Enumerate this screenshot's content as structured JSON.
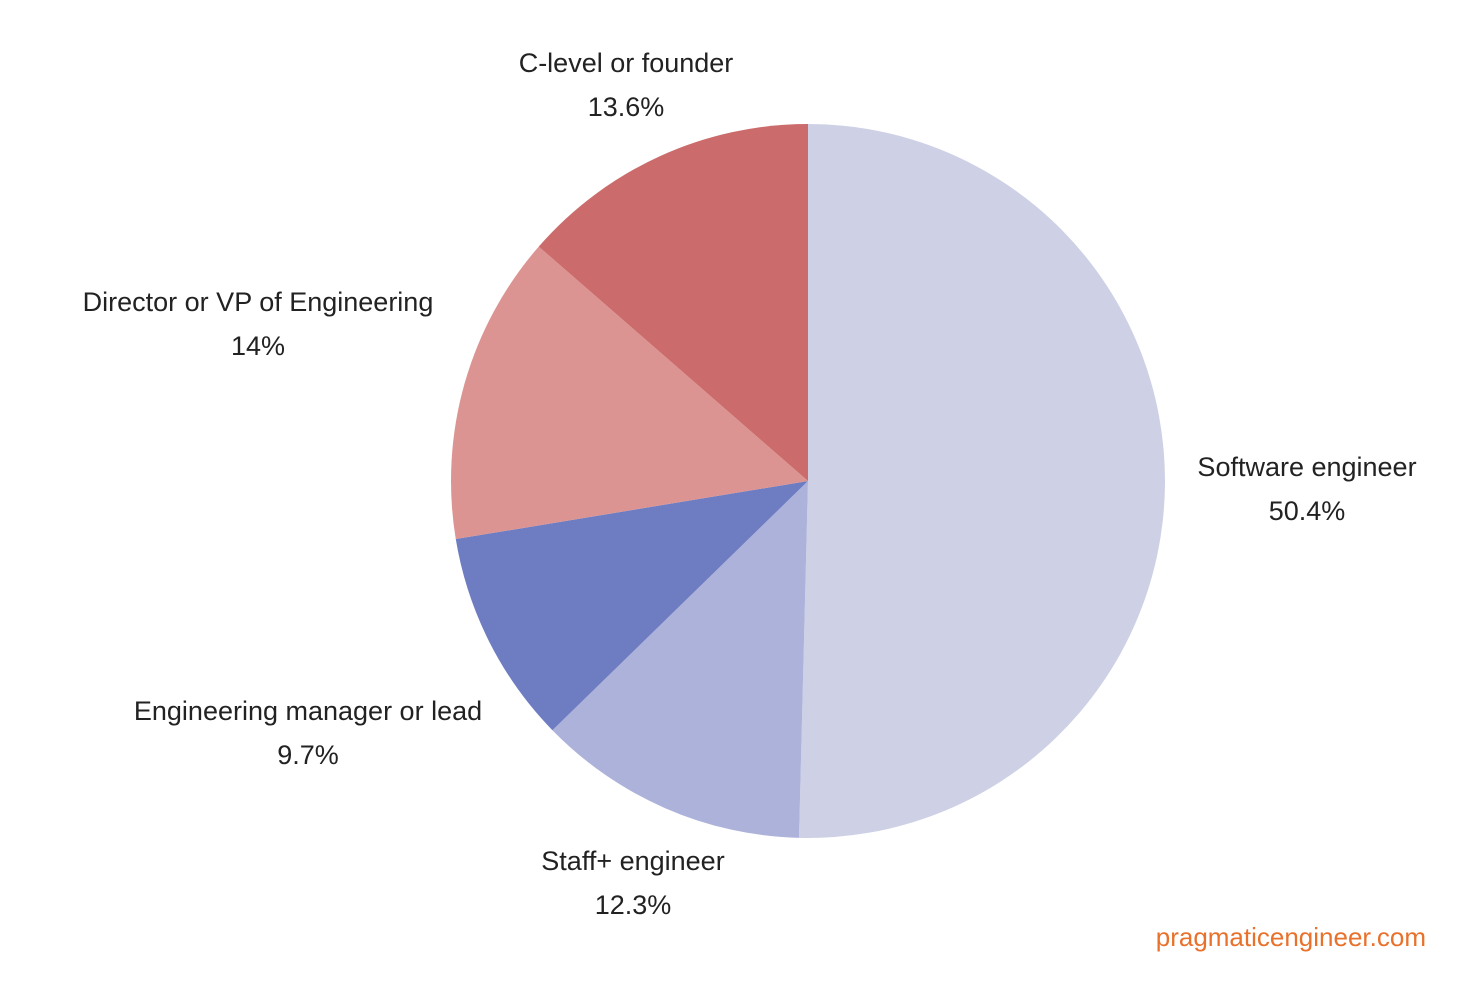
{
  "chart_data": {
    "type": "pie",
    "title": "",
    "start_angle": "12 o'clock",
    "direction": "clockwise",
    "slices": [
      {
        "label": "Software engineer",
        "value": 50.4,
        "display": "50.4%",
        "color": "#ced1e5"
      },
      {
        "label": "Staff+ engineer",
        "value": 12.3,
        "display": "12.3%",
        "color": "#adb2da"
      },
      {
        "label": "Engineering manager or lead",
        "value": 9.7,
        "display": "9.7%",
        "color": "#6e7cc2"
      },
      {
        "label": "Director or VP of Engineering",
        "value": 14,
        "display": "14%",
        "color": "#dc9492"
      },
      {
        "label": "C-level or founder",
        "value": 13.6,
        "display": "13.6%",
        "color": "#cb6b6b"
      }
    ],
    "legend": "none (labels placed outside slices)"
  },
  "labels": [
    {
      "name": "Software engineer",
      "pct": "50.4%"
    },
    {
      "name": "Staff+ engineer",
      "pct": "12.3%"
    },
    {
      "name": "Engineering manager or lead",
      "pct": "9.7%"
    },
    {
      "name": "Director or VP of Engineering",
      "pct": "14%"
    },
    {
      "name": "C-level or founder",
      "pct": "13.6%"
    }
  ],
  "watermark": {
    "text": "pragmaticengineer.com",
    "color": "#e8712b"
  }
}
